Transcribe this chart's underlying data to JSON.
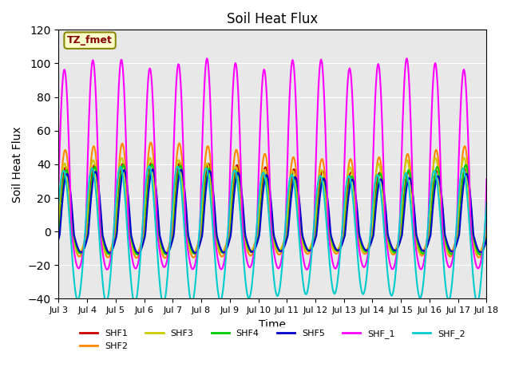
{
  "title": "Soil Heat Flux",
  "xlabel": "Time",
  "ylabel": "Soil Heat Flux",
  "ylim": [
    -40,
    120
  ],
  "xlim_days": [
    3,
    18
  ],
  "tick_days": [
    3,
    4,
    5,
    6,
    7,
    8,
    9,
    10,
    11,
    12,
    13,
    14,
    15,
    16,
    17,
    18
  ],
  "series": {
    "SHF1": {
      "color": "#cc0000",
      "lw": 1.5
    },
    "SHF2": {
      "color": "#ff8800",
      "lw": 1.5
    },
    "SHF3": {
      "color": "#cccc00",
      "lw": 1.5
    },
    "SHF4": {
      "color": "#00cc00",
      "lw": 1.5
    },
    "SHF5": {
      "color": "#0000cc",
      "lw": 1.5
    },
    "SHF_1": {
      "color": "#ff00ff",
      "lw": 1.5
    },
    "SHF_2": {
      "color": "#00cccc",
      "lw": 1.5
    }
  },
  "legend_label": "TZ_fmet",
  "legend_bg": "#ffffcc",
  "legend_border": "#888800",
  "background_color": "#e8e8e8",
  "title_fontsize": 12,
  "axis_fontsize": 10
}
